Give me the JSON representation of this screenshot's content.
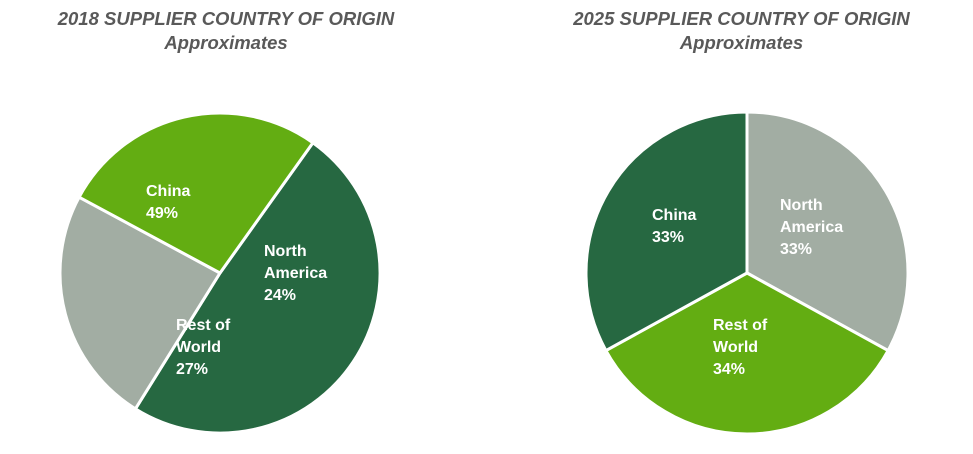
{
  "chart_data": [
    {
      "type": "pie",
      "title": "2018 SUPPLIER COUNTRY OF ORIGIN",
      "subtitle": "Approximates",
      "slices": [
        {
          "lines": [
            "China",
            "49%"
          ],
          "value": 49,
          "color": "#266841"
        },
        {
          "lines": [
            "North",
            "America",
            "24%"
          ],
          "value": 24,
          "color": "#a2ada3"
        },
        {
          "lines": [
            "Rest of",
            "World",
            "27%"
          ],
          "value": 27,
          "color": "#63ad12"
        }
      ]
    },
    {
      "type": "pie",
      "title": "2025 SUPPLIER COUNTRY OF ORIGIN",
      "subtitle": "Approximates",
      "slices": [
        {
          "lines": [
            "North",
            "America",
            "33%"
          ],
          "value": 33,
          "color": "#a2ada3"
        },
        {
          "lines": [
            "Rest of",
            "World",
            "34%"
          ],
          "value": 34,
          "color": "#63ad12"
        },
        {
          "lines": [
            "China",
            "33%"
          ],
          "value": 33,
          "color": "#266841"
        }
      ]
    }
  ]
}
